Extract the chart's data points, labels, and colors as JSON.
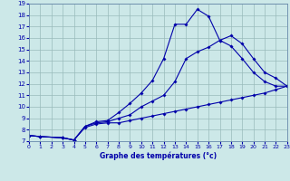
{
  "bg_color": "#cce8e8",
  "grid_color": "#99bbbb",
  "line_color": "#0000aa",
  "xlabel": "Graphe des températures (°c)",
  "xlim": [
    0,
    23
  ],
  "ylim": [
    7,
    19
  ],
  "xticks": [
    0,
    1,
    2,
    3,
    4,
    5,
    6,
    7,
    8,
    9,
    10,
    11,
    12,
    13,
    14,
    15,
    16,
    17,
    18,
    19,
    20,
    21,
    22,
    23
  ],
  "yticks": [
    7,
    8,
    9,
    10,
    11,
    12,
    13,
    14,
    15,
    16,
    17,
    18,
    19
  ],
  "curve_upper_x": [
    0,
    1,
    3,
    4,
    5,
    6,
    7,
    8,
    9,
    10,
    11,
    12,
    13,
    14,
    15,
    16,
    17,
    18,
    19,
    20,
    21,
    22,
    23
  ],
  "curve_upper_y": [
    7.5,
    7.4,
    7.3,
    7.1,
    8.3,
    8.7,
    8.8,
    9.5,
    10.3,
    11.2,
    12.3,
    14.2,
    17.2,
    17.2,
    18.5,
    17.9,
    15.8,
    15.3,
    14.2,
    13.0,
    12.2,
    11.8,
    11.8
  ],
  "curve_mid_x": [
    0,
    1,
    3,
    4,
    5,
    6,
    7,
    8,
    9,
    10,
    11,
    12,
    13,
    14,
    15,
    16,
    17,
    18,
    19,
    20,
    21,
    22,
    23
  ],
  "curve_mid_y": [
    7.5,
    7.4,
    7.3,
    7.1,
    8.3,
    8.6,
    8.7,
    9.0,
    9.3,
    10.0,
    10.5,
    11.0,
    12.2,
    14.2,
    14.8,
    15.2,
    15.8,
    16.2,
    15.5,
    14.2,
    13.0,
    12.5,
    11.8
  ],
  "curve_low_x": [
    0,
    1,
    3,
    4,
    5,
    6,
    7,
    8,
    9,
    10,
    11,
    12,
    13,
    14,
    15,
    16,
    17,
    18,
    19,
    20,
    21,
    22,
    23
  ],
  "curve_low_y": [
    7.5,
    7.4,
    7.3,
    7.1,
    8.2,
    8.5,
    8.6,
    8.6,
    8.8,
    9.0,
    9.2,
    9.4,
    9.6,
    9.8,
    10.0,
    10.2,
    10.4,
    10.6,
    10.8,
    11.0,
    11.2,
    11.5,
    11.8
  ]
}
